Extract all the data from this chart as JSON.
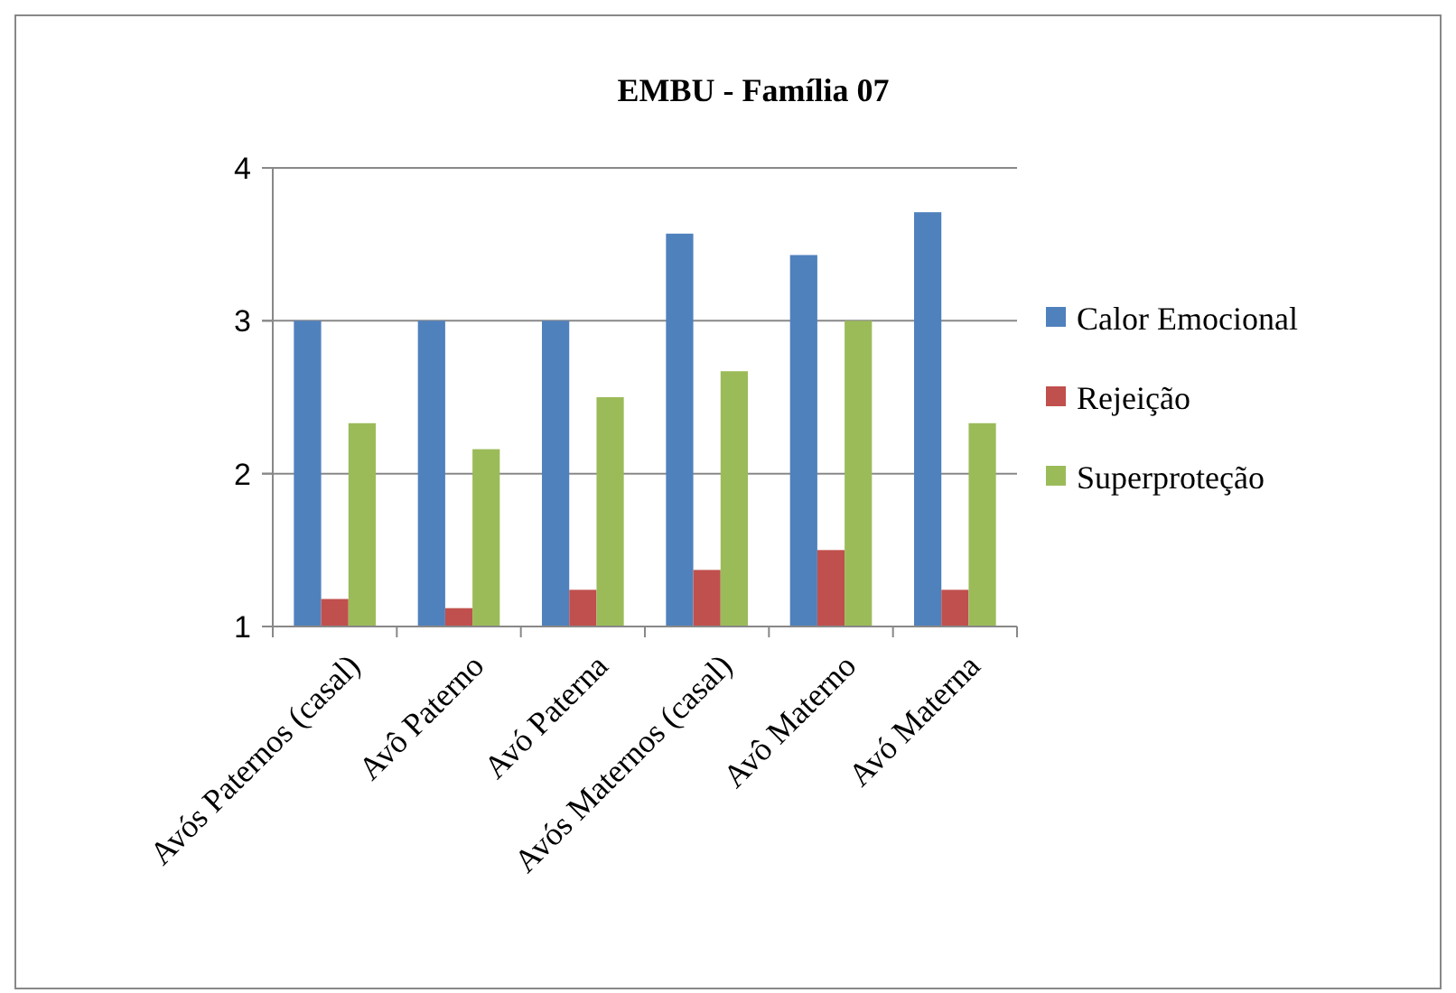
{
  "chart_data": {
    "type": "bar",
    "title": "EMBU - Família 07",
    "categories": [
      "Avós Paternos (casal)",
      "Avô Paterno",
      "Avó Paterna",
      "Avós Maternos (casal)",
      "Avô Materno",
      "Avó Materna"
    ],
    "series": [
      {
        "name": "Calor Emocional",
        "color": "#4f81bd",
        "values": [
          3,
          3,
          3,
          3.57,
          3.43,
          3.71
        ]
      },
      {
        "name": "Rejeição",
        "color": "#c0504d",
        "values": [
          1.18,
          1.12,
          1.24,
          1.37,
          1.5,
          1.24
        ]
      },
      {
        "name": "Superproteção",
        "color": "#9bbb59",
        "values": [
          2.33,
          2.16,
          2.5,
          2.67,
          3,
          2.33
        ]
      }
    ],
    "ylim": [
      1,
      4
    ],
    "yticks": [
      1,
      2,
      3,
      4
    ],
    "grid": "y",
    "legend": "right"
  }
}
